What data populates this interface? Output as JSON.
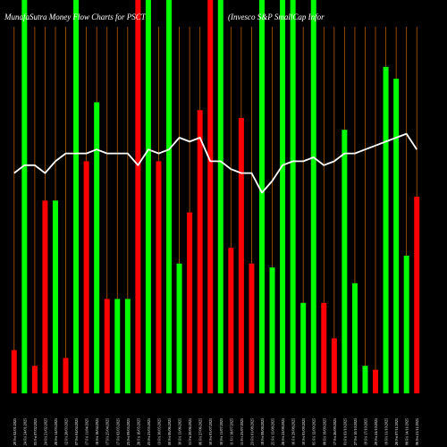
{
  "header": {
    "left": "MunafaSutra  Money Flow  Charts for PSCT",
    "right": "(Invesco S&P SmallCap Infor"
  },
  "colors": {
    "background": "#000000",
    "up": "#00ff00",
    "down": "#ff0000",
    "gridline": "#b35900",
    "line": "#ffffff",
    "text": "#ffffff"
  },
  "chart_data": {
    "type": "bar",
    "ylim": [
      0,
      100
    ],
    "categories": [
      "20 Fri 02/01/2025",
      "24 Fri 24/01/2025",
      "03 Fri 07/02/2025",
      "24 Fri 21/02/2025",
      "28 Fri 14/03/2025",
      "12 Fri 28/03/2025",
      "07 Fri 04/04/2025",
      "17 Fri 11/04/2025",
      "18 Fri 18/04/2025",
      "17 Fri 25/04/2025",
      "17 Fri 02/05/2025",
      "23 Fri 09/05/2025",
      "28 Fri 16/05/2025",
      "23 Fri 23/05/2025",
      "13 Fri 30/05/2025",
      "00 Fri 06/06/2025",
      "30 Fri 13/06/2025",
      "31 Fri 20/06/2025",
      "06 Fri 27/06/2025",
      "30 Fri 03/07/2025",
      "30 Fri 11/07/2025",
      "11 Fri 18/07/2025",
      "11 Fri 25/07/2025",
      "23 Fri 01/08/2025",
      "18 Fri 08/08/2025",
      "25 Fri 15/08/2025",
      "28 Fri 22/08/2025",
      "16 Fri 29/08/2025",
      "10 Fri 05/09/2025",
      "05 Fri 12/09/2025",
      "08 Fri 19/09/2025",
      "17 Fri 26/09/2025",
      "01 Fri 03/10/2025",
      "27 Fri 10/10/2025",
      "19 Fri 17/10/2025",
      "29 Fri 24/10/2025",
      "19 Fri 31/10/2025",
      "28 Fri 07/11/2025",
      "08 Fri 14/11/2025",
      "06 Fri 21/11/2025"
    ],
    "series": [
      {
        "values": [
          11,
          100,
          7,
          49,
          49,
          9,
          100,
          59,
          74,
          24,
          24,
          24,
          100,
          100,
          59,
          100,
          33,
          46,
          72,
          100,
          100,
          37,
          70,
          33,
          100,
          32,
          100,
          100,
          23,
          100,
          23,
          14,
          67,
          28,
          7,
          6,
          83,
          80,
          35,
          50
        ],
        "direction": [
          "down",
          "up",
          "down",
          "down",
          "up",
          "down",
          "up",
          "down",
          "up",
          "down",
          "up",
          "up",
          "down",
          "up",
          "down",
          "up",
          "up",
          "down",
          "down",
          "down",
          "up",
          "down",
          "down",
          "down",
          "up",
          "up",
          "up",
          "up",
          "up",
          "up",
          "down",
          "down",
          "up",
          "up",
          "up",
          "down",
          "up",
          "up",
          "up",
          "down"
        ]
      },
      {
        "type": "line",
        "values": [
          56,
          58,
          58,
          56,
          59,
          61,
          61,
          61,
          62,
          61,
          61,
          61,
          58,
          62,
          61,
          62,
          65,
          64,
          65,
          59,
          59,
          57,
          56,
          56,
          51,
          54,
          58,
          59,
          59,
          60,
          58,
          59,
          61,
          61,
          62,
          63,
          64,
          65,
          66,
          62
        ]
      }
    ]
  }
}
